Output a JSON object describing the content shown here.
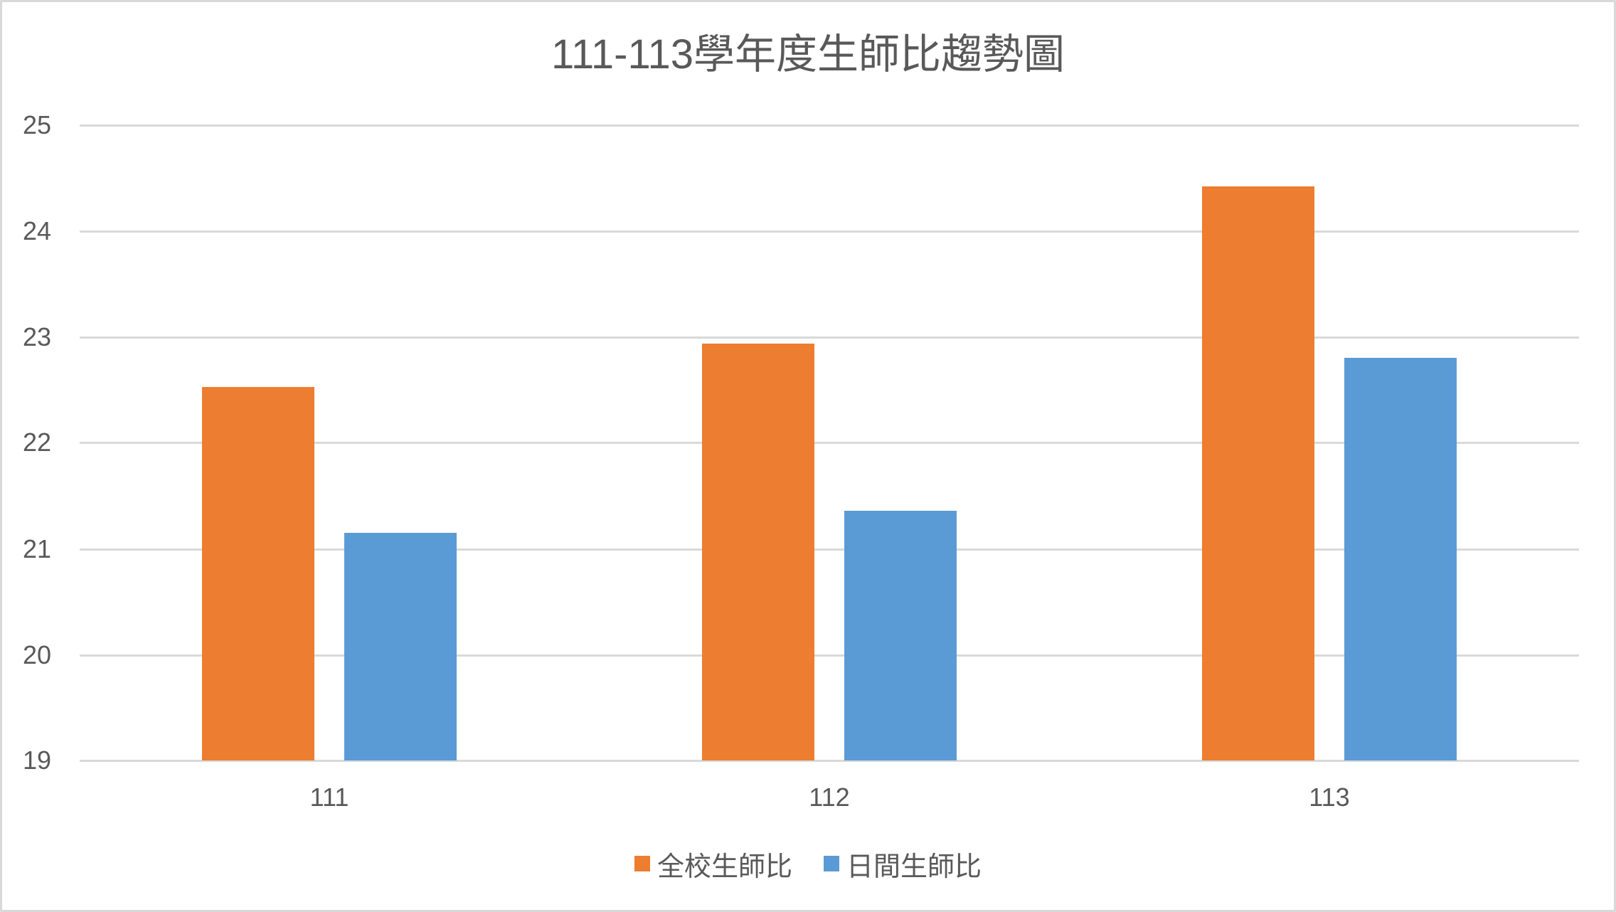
{
  "chart_data": {
    "type": "bar",
    "title": "111-113學年度生師比趨勢圖",
    "categories": [
      "111",
      "112",
      "113"
    ],
    "series": [
      {
        "name": "全校生師比",
        "color": "#ED7D31",
        "values": [
          22.53,
          22.94,
          24.42
        ]
      },
      {
        "name": "日間生師比",
        "color": "#5B9BD5",
        "values": [
          21.15,
          21.36,
          22.8
        ]
      }
    ],
    "xlabel": "",
    "ylabel": "",
    "ylim": [
      19,
      25
    ],
    "yticks": [
      "25",
      "24",
      "23",
      "22",
      "21",
      "20",
      "19"
    ],
    "grid": true,
    "legend_position": "bottom"
  },
  "colors": {
    "text": "#595959",
    "gridline": "#D9D9D9",
    "border": "#D9D9D9"
  }
}
